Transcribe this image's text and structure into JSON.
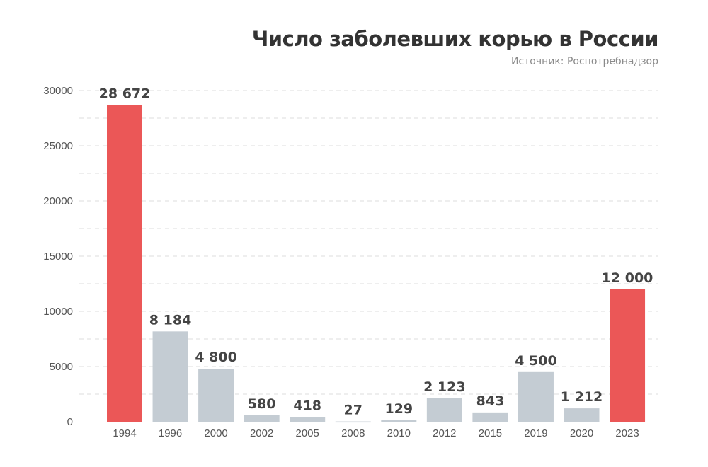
{
  "chart_data": {
    "type": "bar",
    "title": "Число заболевших корью в России",
    "subtitle": "Источник: Роспотребнадзор",
    "categories": [
      "1994",
      "1996",
      "2000",
      "2002",
      "2005",
      "2008",
      "2010",
      "2012",
      "2015",
      "2019",
      "2020",
      "2023"
    ],
    "values": [
      28672,
      8184,
      4800,
      580,
      418,
      27,
      129,
      2123,
      843,
      4500,
      1212,
      12000
    ],
    "data_labels": [
      "28 672",
      "8 184",
      "4 800",
      "580",
      "418",
      "27",
      "129",
      "2 123",
      "843",
      "4 500",
      "1 212",
      "12 000"
    ],
    "highlighted": [
      "1994",
      "2023"
    ],
    "yticks": [
      0,
      5000,
      10000,
      15000,
      20000,
      25000,
      30000
    ],
    "ylim": [
      0,
      30000
    ],
    "grid": true,
    "colors": {
      "highlight": "#EB5757",
      "default": "#C4CCD3",
      "label": "#444444",
      "tick": "#555555",
      "grid": "#DDDDDD"
    }
  }
}
